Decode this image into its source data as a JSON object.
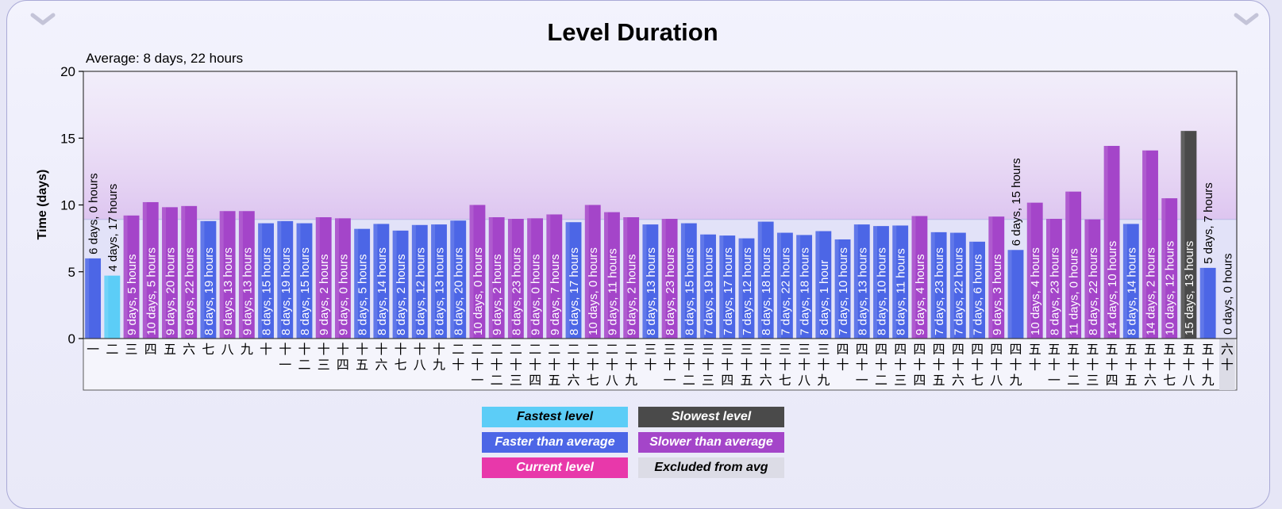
{
  "chart_data": {
    "type": "bar",
    "title": "Level Duration",
    "subtitle": "Average: 8 days, 22 hours",
    "ylabel": "Time (days)",
    "ylim": [
      0,
      20
    ],
    "yticks": [
      0,
      5,
      10,
      15,
      20
    ],
    "average": 8.92,
    "categories": [
      "一",
      "二",
      "三",
      "四",
      "五",
      "六",
      "七",
      "八",
      "九",
      "十",
      "十一",
      "十二",
      "十三",
      "十四",
      "十五",
      "十六",
      "十七",
      "十八",
      "十九",
      "二十",
      "二十一",
      "二十二",
      "二十三",
      "二十四",
      "二十五",
      "二十六",
      "二十七",
      "二十八",
      "二十九",
      "三十",
      "三十一",
      "三十二",
      "三十三",
      "三十四",
      "三十五",
      "三十六",
      "三十七",
      "三十八",
      "三十九",
      "四十",
      "四十一",
      "四十二",
      "四十三",
      "四十四",
      "四十五",
      "四十六",
      "四十七",
      "四十八",
      "四十九",
      "五十",
      "五十一",
      "五十二",
      "五十三",
      "五十四",
      "五十五",
      "五十六",
      "五十七",
      "五十八",
      "五十九",
      "六十"
    ],
    "values": [
      6.0,
      4.71,
      9.21,
      10.21,
      9.83,
      9.92,
      8.79,
      9.54,
      9.54,
      8.63,
      8.79,
      8.63,
      9.08,
      9.0,
      8.21,
      8.58,
      8.08,
      8.5,
      8.54,
      8.83,
      10.0,
      9.08,
      8.96,
      9.0,
      9.29,
      8.71,
      10.0,
      9.46,
      9.08,
      8.54,
      8.96,
      8.63,
      7.79,
      7.71,
      7.5,
      8.75,
      7.92,
      7.75,
      8.04,
      7.42,
      8.54,
      8.42,
      8.46,
      9.17,
      7.96,
      7.92,
      7.25,
      9.13,
      6.63,
      10.17,
      8.96,
      11.0,
      8.92,
      14.42,
      8.58,
      14.08,
      10.5,
      15.54,
      5.29,
      0.0
    ],
    "labels": [
      "6 days, 0 hours",
      "4 days, 17 hours",
      "9 days, 5 hours",
      "10 days, 5 hours",
      "9 days, 20 hours",
      "9 days, 22 hours",
      "8 days, 19 hours",
      "9 days, 13 hours",
      "9 days, 13 hours",
      "8 days, 15 hours",
      "8 days, 19 hours",
      "8 days, 15 hours",
      "9 days, 2 hours",
      "9 days, 0 hours",
      "8 days, 5 hours",
      "8 days, 14 hours",
      "8 days, 2 hours",
      "8 days, 12 hours",
      "8 days, 13 hours",
      "8 days, 20 hours",
      "10 days, 0 hours",
      "9 days, 2 hours",
      "8 days, 23 hours",
      "9 days, 0 hours",
      "9 days, 7 hours",
      "8 days, 17 hours",
      "10 days, 0 hours",
      "9 days, 11 hours",
      "9 days, 2 hours",
      "8 days, 13 hours",
      "8 days, 23 hours",
      "8 days, 15 hours",
      "7 days, 19 hours",
      "7 days, 17 hours",
      "7 days, 12 hours",
      "8 days, 18 hours",
      "7 days, 22 hours",
      "7 days, 18 hours",
      "8 days, 1 hour",
      "7 days, 10 hours",
      "8 days, 13 hours",
      "8 days, 10 hours",
      "8 days, 11 hours",
      "9 days, 4 hours",
      "7 days, 23 hours",
      "7 days, 22 hours",
      "7 days, 6 hours",
      "9 days, 3 hours",
      "6 days, 15 hours",
      "10 days, 4 hours",
      "8 days, 23 hours",
      "11 days, 0 hours",
      "8 days, 22 hours",
      "14 days, 10 hours",
      "8 days, 14 hours",
      "14 days, 2 hours",
      "10 days, 12 hours",
      "15 days, 13 hours",
      "5 days, 7 hours",
      "0 days, 0 hours"
    ],
    "statuses": [
      "faster",
      "fastest",
      "slower",
      "slower",
      "slower",
      "slower",
      "faster",
      "slower",
      "slower",
      "faster",
      "faster",
      "faster",
      "slower",
      "slower",
      "faster",
      "faster",
      "faster",
      "faster",
      "faster",
      "faster",
      "slower",
      "slower",
      "slower",
      "slower",
      "slower",
      "faster",
      "slower",
      "slower",
      "slower",
      "faster",
      "slower",
      "faster",
      "faster",
      "faster",
      "faster",
      "faster",
      "faster",
      "faster",
      "faster",
      "faster",
      "faster",
      "faster",
      "faster",
      "slower",
      "faster",
      "faster",
      "faster",
      "slower",
      "faster",
      "slower",
      "slower",
      "slower",
      "slower",
      "slower",
      "faster",
      "slower",
      "slower",
      "slowest",
      "faster",
      "excluded"
    ],
    "colors": {
      "fastest": "#5ccdf7",
      "faster": "#4c66e6",
      "slower": "#a445c9",
      "slowest": "#4a4a4a",
      "current": "#e838aa",
      "excluded": "#dcdce6"
    },
    "legend": [
      {
        "key": "fastest",
        "label": "Fastest level",
        "color": "#5ccdf7",
        "text": "light"
      },
      {
        "key": "slowest",
        "label": "Slowest level",
        "color": "#4a4a4a",
        "text": "dark"
      },
      {
        "key": "faster",
        "label": "Faster than average",
        "color": "#4c66e6",
        "text": "dark"
      },
      {
        "key": "slower",
        "label": "Slower than average",
        "color": "#a445c9",
        "text": "dark"
      },
      {
        "key": "current",
        "label": "Current level",
        "color": "#e838aa",
        "text": "dark"
      },
      {
        "key": "excluded",
        "label": "Excluded from avg",
        "color": "#dcdce6",
        "text": "light"
      }
    ],
    "legend_placement": "bottom-center",
    "grid": false
  },
  "controls": {
    "left_icon": "chevron-down-icon",
    "right_icon": "chevron-down-icon"
  }
}
